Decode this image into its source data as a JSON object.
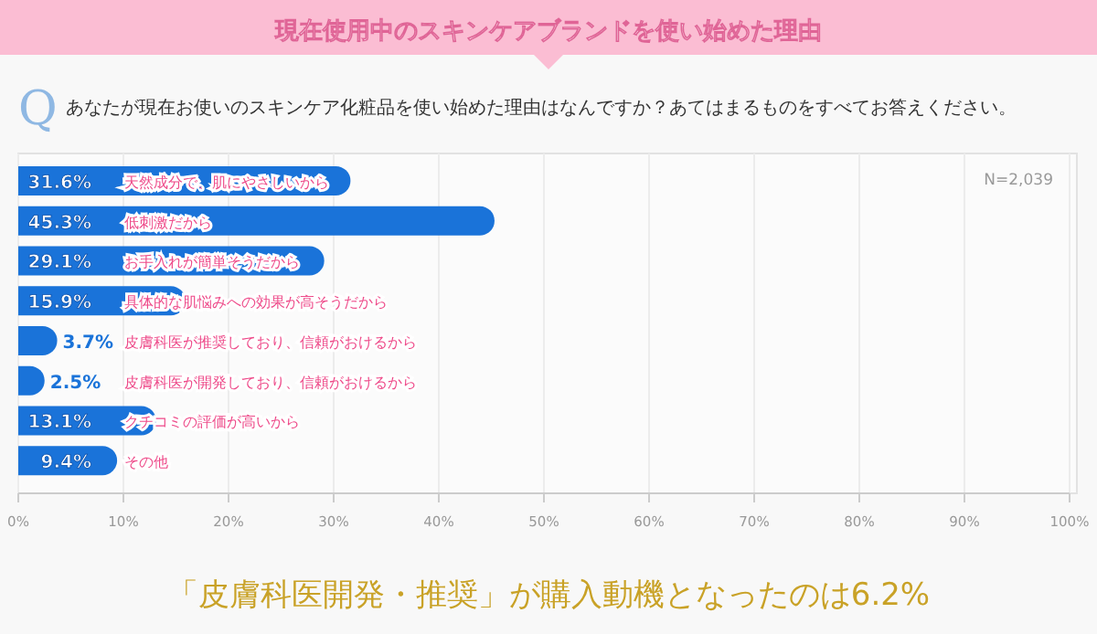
{
  "chart_data": {
    "type": "bar",
    "orientation": "horizontal",
    "title": "現在使用中のスキンケアブランドを使い始めた理由",
    "subtitle": "あなたが現在お使いのスキンケア化粧品を使い始めた理由はなんですか？あてはまるものをすべてお答えください。",
    "categories": [
      "天然成分で、肌にやさしいから",
      "低刺激だから",
      "お手入れが簡単そうだから",
      "具体的な肌悩みへの効果が高そうだから",
      "皮膚科医が推奨しており、信頼がおけるから",
      "皮膚科医が開発しており、信頼がおけるから",
      "クチコミの評価が高いから",
      "その他"
    ],
    "values": [
      31.6,
      45.3,
      29.1,
      15.9,
      3.7,
      2.5,
      13.1,
      9.4
    ],
    "value_labels": [
      "31.6%",
      "45.3%",
      "29.1%",
      "15.9%",
      "3.7%",
      "2.5%",
      "13.1%",
      "9.4%"
    ],
    "color": "#1a73d9",
    "xlim": [
      0,
      100
    ],
    "xticks": [
      {
        "value": 0,
        "label": "0%"
      },
      {
        "value": 10,
        "label": "10%"
      },
      {
        "value": 20,
        "label": "20%"
      },
      {
        "value": 30,
        "label": "30%"
      },
      {
        "value": 40,
        "label": "40%"
      },
      {
        "value": 50,
        "label": "50%"
      },
      {
        "value": 60,
        "label": "60%"
      },
      {
        "value": 70,
        "label": "70%"
      },
      {
        "value": 80,
        "label": "80%"
      },
      {
        "value": 90,
        "label": "90%"
      },
      {
        "value": 100,
        "label": "100%"
      }
    ],
    "grid": "x",
    "annotations": [
      "Q",
      "N=2,039",
      "「皮膚科医開発・推奨」が購入動機となったのは6.2%"
    ]
  }
}
